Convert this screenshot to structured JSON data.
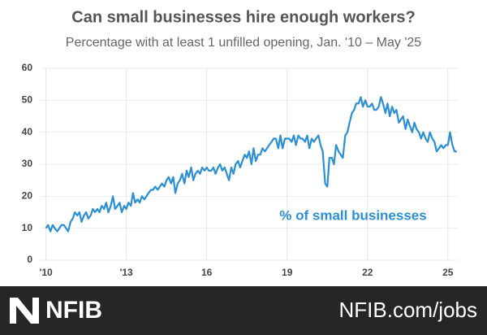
{
  "chart_data": {
    "type": "line",
    "title": "Can small businesses hire enough workers?",
    "subtitle": "Percentage with at least 1 unfilled opening, Jan. '10 –  May '25",
    "series": [
      {
        "name": "% of small businesses",
        "color": "#2b8fd6",
        "x": [
          2010,
          2010.08,
          2010.17,
          2010.25,
          2010.33,
          2010.42,
          2010.5,
          2010.58,
          2010.67,
          2010.75,
          2010.83,
          2010.92,
          2011,
          2011.08,
          2011.17,
          2011.25,
          2011.33,
          2011.42,
          2011.5,
          2011.58,
          2011.67,
          2011.75,
          2011.83,
          2011.92,
          2012,
          2012.08,
          2012.17,
          2012.25,
          2012.33,
          2012.42,
          2012.5,
          2012.58,
          2012.67,
          2012.75,
          2012.83,
          2012.92,
          2013,
          2013.08,
          2013.17,
          2013.25,
          2013.33,
          2013.42,
          2013.5,
          2013.58,
          2013.67,
          2013.75,
          2013.83,
          2013.92,
          2014,
          2014.08,
          2014.17,
          2014.25,
          2014.33,
          2014.42,
          2014.5,
          2014.58,
          2014.67,
          2014.75,
          2014.83,
          2014.92,
          2015,
          2015.08,
          2015.17,
          2015.25,
          2015.33,
          2015.42,
          2015.5,
          2015.58,
          2015.67,
          2015.75,
          2015.83,
          2015.92,
          2016,
          2016.08,
          2016.17,
          2016.25,
          2016.33,
          2016.42,
          2016.5,
          2016.58,
          2016.67,
          2016.75,
          2016.83,
          2016.92,
          2017,
          2017.08,
          2017.17,
          2017.25,
          2017.33,
          2017.42,
          2017.5,
          2017.58,
          2017.67,
          2017.75,
          2017.83,
          2017.92,
          2018,
          2018.08,
          2018.17,
          2018.25,
          2018.33,
          2018.42,
          2018.5,
          2018.58,
          2018.67,
          2018.75,
          2018.83,
          2018.92,
          2019,
          2019.08,
          2019.17,
          2019.25,
          2019.33,
          2019.42,
          2019.5,
          2019.58,
          2019.67,
          2019.75,
          2019.83,
          2019.92,
          2020,
          2020.08,
          2020.17,
          2020.25,
          2020.33,
          2020.42,
          2020.5,
          2020.58,
          2020.67,
          2020.75,
          2020.83,
          2020.92,
          2021,
          2021.08,
          2021.17,
          2021.25,
          2021.33,
          2021.42,
          2021.5,
          2021.58,
          2021.67,
          2021.75,
          2021.83,
          2021.92,
          2022,
          2022.08,
          2022.17,
          2022.25,
          2022.33,
          2022.42,
          2022.5,
          2022.58,
          2022.67,
          2022.75,
          2022.83,
          2022.92,
          2023,
          2023.08,
          2023.17,
          2023.25,
          2023.33,
          2023.42,
          2023.5,
          2023.58,
          2023.67,
          2023.75,
          2023.83,
          2023.92,
          2024,
          2024.08,
          2024.17,
          2024.25,
          2024.33,
          2024.42,
          2024.5,
          2024.58,
          2024.67,
          2024.75,
          2024.83,
          2024.92,
          2025,
          2025.08,
          2025.17,
          2025.25,
          2025.33
        ],
        "values": [
          10,
          11,
          9,
          11,
          10,
          9,
          10,
          11,
          11,
          10,
          9,
          12,
          13,
          15,
          14,
          15,
          12,
          14,
          15,
          13,
          14,
          16,
          15,
          16,
          15,
          17,
          16,
          18,
          15,
          17,
          20,
          16,
          17,
          18,
          15,
          17,
          16,
          18,
          17,
          21,
          18,
          19,
          18,
          20,
          19,
          20,
          21,
          22,
          22,
          23,
          22,
          23,
          24,
          23,
          25,
          26,
          24,
          26,
          21,
          24,
          25,
          27,
          24,
          28,
          26,
          29,
          25,
          27,
          28,
          27,
          29,
          28,
          29,
          28,
          28,
          29,
          27,
          29,
          30,
          28,
          29,
          27,
          25,
          29,
          27,
          30,
          31,
          29,
          31,
          33,
          32,
          34,
          30,
          35,
          31,
          33,
          33,
          35,
          34,
          35,
          36,
          37,
          38,
          38,
          35,
          39,
          35,
          38,
          38,
          38,
          37,
          39,
          36,
          39,
          38,
          38,
          37,
          39,
          35,
          38,
          37,
          38,
          39,
          36,
          34,
          24,
          23,
          32,
          32,
          30,
          36,
          34,
          33,
          32,
          39,
          40,
          43,
          46,
          47,
          49,
          49,
          51,
          48,
          50,
          48,
          48,
          49,
          47,
          47,
          48,
          51,
          49,
          46,
          49,
          45,
          48,
          46,
          47,
          43,
          44,
          45,
          41,
          44,
          42,
          40,
          43,
          41,
          40,
          38,
          40,
          38,
          37,
          40,
          38,
          37,
          34,
          35,
          36,
          35,
          36,
          36,
          40,
          36,
          34,
          34
        ]
      }
    ],
    "xlim": [
      2009.8,
      2025.4
    ],
    "xticks": [
      {
        "value": 2010,
        "label": "'10"
      },
      {
        "value": 2013,
        "label": "'13"
      },
      {
        "value": 2016,
        "label": "16"
      },
      {
        "value": 2019,
        "label": "19"
      },
      {
        "value": 2022,
        "label": "22"
      },
      {
        "value": 2025,
        "label": "25"
      }
    ],
    "ylim": [
      0,
      60
    ],
    "yticks": [
      0,
      10,
      20,
      30,
      40,
      50,
      60
    ],
    "grid": true
  },
  "footer": {
    "logo": "NFIB",
    "url": "NFIB.com/jobs"
  }
}
